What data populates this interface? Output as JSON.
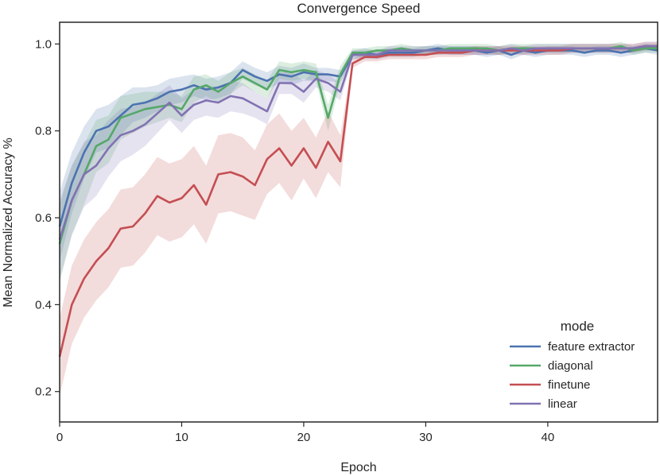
{
  "chart_data": {
    "type": "line",
    "title": "Convergence Speed",
    "xlabel": "Epoch",
    "ylabel": "Mean Normalized Accuracy %",
    "xlim": [
      0,
      49
    ],
    "ylim": [
      0.13,
      1.05
    ],
    "xticks": [
      0,
      10,
      20,
      30,
      40
    ],
    "yticks": [
      0.2,
      0.4,
      0.6,
      0.8,
      1.0
    ],
    "ytick_labels": [
      "0.2",
      "0.4",
      "0.6",
      "0.8",
      "1.0"
    ],
    "legend": {
      "title": "mode",
      "placement": "lower-right"
    },
    "x": [
      0,
      1,
      2,
      3,
      4,
      5,
      6,
      7,
      8,
      9,
      10,
      11,
      12,
      13,
      14,
      15,
      16,
      17,
      18,
      19,
      20,
      21,
      22,
      23,
      24,
      25,
      26,
      27,
      28,
      29,
      30,
      31,
      32,
      33,
      34,
      35,
      36,
      37,
      38,
      39,
      40,
      41,
      42,
      43,
      44,
      45,
      46,
      47,
      48,
      49
    ],
    "series": [
      {
        "name": "feature extractor",
        "color": "#4c72b0",
        "values": [
          0.58,
          0.68,
          0.75,
          0.8,
          0.81,
          0.835,
          0.86,
          0.865,
          0.875,
          0.89,
          0.895,
          0.905,
          0.895,
          0.9,
          0.91,
          0.94,
          0.925,
          0.915,
          0.93,
          0.925,
          0.935,
          0.93,
          0.93,
          0.925,
          0.975,
          0.98,
          0.975,
          0.98,
          0.98,
          0.98,
          0.985,
          0.99,
          0.985,
          0.985,
          0.985,
          0.98,
          0.985,
          0.975,
          0.985,
          0.98,
          0.985,
          0.985,
          0.985,
          0.98,
          0.985,
          0.985,
          0.98,
          0.985,
          0.99,
          0.985
        ],
        "band": [
          0.08,
          0.07,
          0.06,
          0.05,
          0.05,
          0.045,
          0.04,
          0.035,
          0.03,
          0.03,
          0.03,
          0.025,
          0.025,
          0.025,
          0.025,
          0.02,
          0.02,
          0.02,
          0.02,
          0.02,
          0.02,
          0.015,
          0.015,
          0.015,
          0.01,
          0.01,
          0.01,
          0.01,
          0.01,
          0.01,
          0.01,
          0.01,
          0.01,
          0.01,
          0.01,
          0.01,
          0.01,
          0.01,
          0.01,
          0.01,
          0.01,
          0.01,
          0.01,
          0.01,
          0.01,
          0.01,
          0.01,
          0.01,
          0.01,
          0.01
        ]
      },
      {
        "name": "diagonal",
        "color": "#55a868",
        "values": [
          0.54,
          0.64,
          0.7,
          0.765,
          0.78,
          0.83,
          0.84,
          0.85,
          0.855,
          0.86,
          0.85,
          0.895,
          0.905,
          0.89,
          0.91,
          0.925,
          0.91,
          0.895,
          0.94,
          0.935,
          0.94,
          0.935,
          0.83,
          0.93,
          0.98,
          0.98,
          0.985,
          0.985,
          0.99,
          0.985,
          0.985,
          0.985,
          0.99,
          0.99,
          0.99,
          0.99,
          0.985,
          0.99,
          0.99,
          0.99,
          0.99,
          0.99,
          0.99,
          0.99,
          0.99,
          0.99,
          0.995,
          0.985,
          0.99,
          0.99
        ],
        "band": [
          0.09,
          0.08,
          0.07,
          0.06,
          0.055,
          0.05,
          0.045,
          0.04,
          0.035,
          0.03,
          0.03,
          0.03,
          0.025,
          0.025,
          0.025,
          0.02,
          0.02,
          0.02,
          0.02,
          0.02,
          0.02,
          0.02,
          0.03,
          0.02,
          0.01,
          0.01,
          0.01,
          0.01,
          0.01,
          0.01,
          0.01,
          0.01,
          0.01,
          0.01,
          0.01,
          0.01,
          0.01,
          0.01,
          0.01,
          0.01,
          0.01,
          0.01,
          0.01,
          0.01,
          0.01,
          0.01,
          0.01,
          0.01,
          0.01,
          0.01
        ]
      },
      {
        "name": "finetune",
        "color": "#c44e52",
        "values": [
          0.28,
          0.4,
          0.46,
          0.5,
          0.53,
          0.575,
          0.58,
          0.61,
          0.65,
          0.635,
          0.645,
          0.675,
          0.63,
          0.7,
          0.705,
          0.695,
          0.675,
          0.735,
          0.76,
          0.72,
          0.76,
          0.715,
          0.775,
          0.73,
          0.955,
          0.97,
          0.97,
          0.975,
          0.975,
          0.975,
          0.975,
          0.98,
          0.98,
          0.98,
          0.985,
          0.985,
          0.985,
          0.985,
          0.985,
          0.985,
          0.985,
          0.985,
          0.99,
          0.99,
          0.99,
          0.99,
          0.99,
          0.99,
          0.995,
          0.995
        ],
        "band": [
          0.09,
          0.09,
          0.09,
          0.09,
          0.09,
          0.09,
          0.09,
          0.09,
          0.09,
          0.09,
          0.09,
          0.09,
          0.09,
          0.09,
          0.09,
          0.09,
          0.08,
          0.08,
          0.08,
          0.08,
          0.07,
          0.07,
          0.07,
          0.06,
          0.01,
          0.01,
          0.01,
          0.01,
          0.01,
          0.01,
          0.01,
          0.01,
          0.01,
          0.01,
          0.01,
          0.01,
          0.01,
          0.01,
          0.01,
          0.01,
          0.01,
          0.01,
          0.01,
          0.01,
          0.01,
          0.01,
          0.01,
          0.01,
          0.01,
          0.01
        ]
      },
      {
        "name": "linear",
        "color": "#8172b2",
        "values": [
          0.55,
          0.64,
          0.7,
          0.72,
          0.76,
          0.79,
          0.8,
          0.815,
          0.84,
          0.865,
          0.835,
          0.86,
          0.87,
          0.865,
          0.88,
          0.875,
          0.86,
          0.845,
          0.91,
          0.91,
          0.89,
          0.92,
          0.91,
          0.89,
          0.975,
          0.975,
          0.975,
          0.985,
          0.985,
          0.985,
          0.985,
          0.985,
          0.985,
          0.985,
          0.985,
          0.985,
          0.985,
          0.99,
          0.985,
          0.99,
          0.99,
          0.99,
          0.99,
          0.99,
          0.99,
          0.99,
          0.99,
          0.99,
          0.995,
          0.995
        ],
        "band": [
          0.09,
          0.08,
          0.075,
          0.07,
          0.065,
          0.06,
          0.055,
          0.05,
          0.045,
          0.04,
          0.04,
          0.035,
          0.035,
          0.035,
          0.035,
          0.035,
          0.03,
          0.03,
          0.025,
          0.025,
          0.025,
          0.02,
          0.02,
          0.02,
          0.01,
          0.01,
          0.01,
          0.01,
          0.01,
          0.01,
          0.01,
          0.01,
          0.01,
          0.01,
          0.01,
          0.01,
          0.01,
          0.01,
          0.01,
          0.01,
          0.01,
          0.01,
          0.01,
          0.01,
          0.01,
          0.01,
          0.01,
          0.01,
          0.01,
          0.01
        ]
      }
    ]
  }
}
